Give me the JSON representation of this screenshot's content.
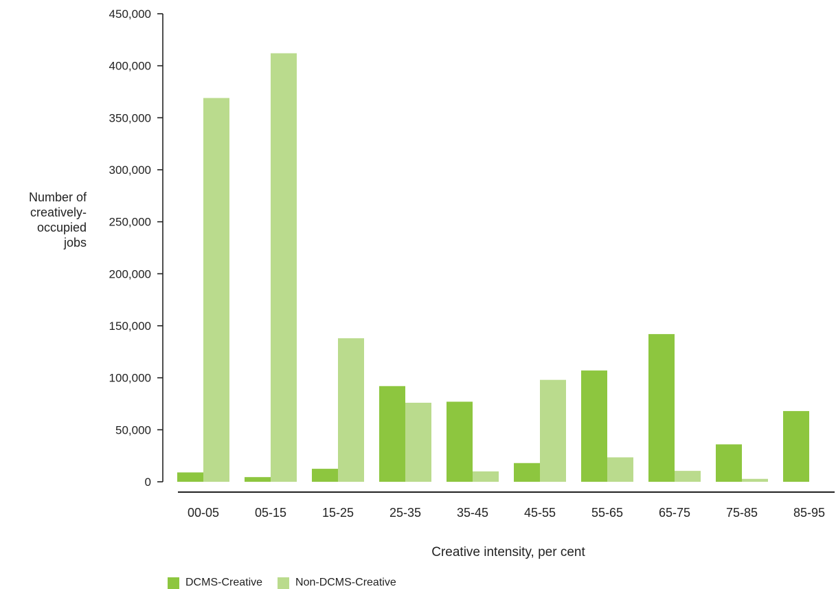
{
  "chart_data": {
    "type": "bar",
    "title": "",
    "xlabel": "Creative intensity, per cent",
    "ylabel": [
      "Number of",
      "creatively-",
      "occupied",
      "jobs"
    ],
    "categories": [
      "00-05",
      "05-15",
      "15-25",
      "25-35",
      "35-45",
      "45-55",
      "55-65",
      "65-75",
      "75-85",
      "85-95"
    ],
    "yticks": [
      0,
      50000,
      100000,
      150000,
      200000,
      250000,
      300000,
      350000,
      400000,
      450000
    ],
    "ytick_labels": [
      "0",
      "50,000",
      "100,000",
      "150,000",
      "200,000",
      "250,000",
      "300,000",
      "350,000",
      "400,000",
      "450,000"
    ],
    "ylim": [
      0,
      450000
    ],
    "grid": false,
    "legend_position": "bottom-left",
    "series": [
      {
        "name": "DCMS-Creative",
        "color": "#8dc63f",
        "values": [
          9000,
          4500,
          12500,
          92000,
          77000,
          18000,
          107000,
          142000,
          36000,
          68000
        ]
      },
      {
        "name": "Non-DCMS-Creative",
        "color": "#badb8d",
        "values": [
          369000,
          412000,
          138000,
          76000,
          10000,
          98000,
          23500,
          10500,
          2800,
          0
        ]
      }
    ]
  }
}
